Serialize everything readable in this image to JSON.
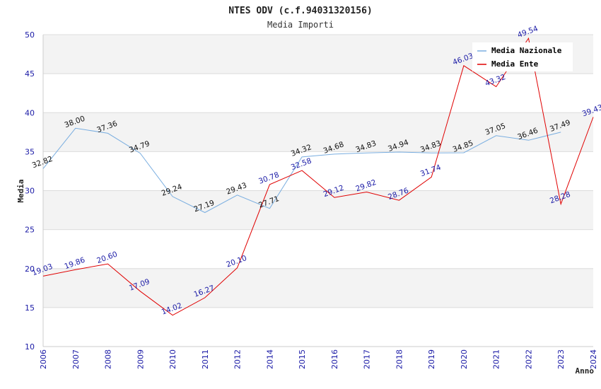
{
  "chart_data": {
    "type": "line",
    "title": "NTES ODV (c.f.94031320156)",
    "subtitle": "Media Importi",
    "xlabel": "Anno",
    "ylabel": "Media",
    "ylim": [
      10,
      50
    ],
    "yticks": [
      "10",
      "15",
      "20",
      "25",
      "30",
      "35",
      "40",
      "45",
      "50"
    ],
    "categories": [
      "2006",
      "2007",
      "2008",
      "2009",
      "2010",
      "2011",
      "2012",
      "2014",
      "2015",
      "2016",
      "2017",
      "2018",
      "2019",
      "2020",
      "2021",
      "2022",
      "2023",
      "2024"
    ],
    "series": [
      {
        "name": "Media Nazionale",
        "color": "#7aaee0",
        "values": [
          32.82,
          38.0,
          37.36,
          34.79,
          29.24,
          27.19,
          29.43,
          27.71,
          34.32,
          34.68,
          34.83,
          34.94,
          34.83,
          34.85,
          37.05,
          36.46,
          37.49,
          null
        ],
        "labels": [
          "32.82",
          "38.00",
          "37.36",
          "34.79",
          "29.24",
          "27.19",
          "29.43",
          "27.71",
          "34.32",
          "34.68",
          "34.83",
          "34.94",
          "34.83",
          "34.85",
          "37.05",
          "36.46",
          "37.49",
          ""
        ]
      },
      {
        "name": "Media Ente",
        "color": "#e00000",
        "values": [
          19.03,
          19.86,
          20.6,
          17.09,
          14.02,
          16.27,
          20.1,
          30.78,
          32.58,
          29.12,
          29.82,
          28.76,
          31.74,
          46.03,
          43.32,
          49.54,
          28.28,
          39.43
        ],
        "labels": [
          "19.03",
          "19.86",
          "20.60",
          "17.09",
          "14.02",
          "16.27",
          "20.10",
          "30.78",
          "32.58",
          "29.12",
          "29.82",
          "28.76",
          "31.74",
          "46.03",
          "43.32",
          "49.54",
          "28.28",
          "39.43"
        ]
      }
    ],
    "legend": {
      "placement": "top-right"
    },
    "grid": true
  }
}
